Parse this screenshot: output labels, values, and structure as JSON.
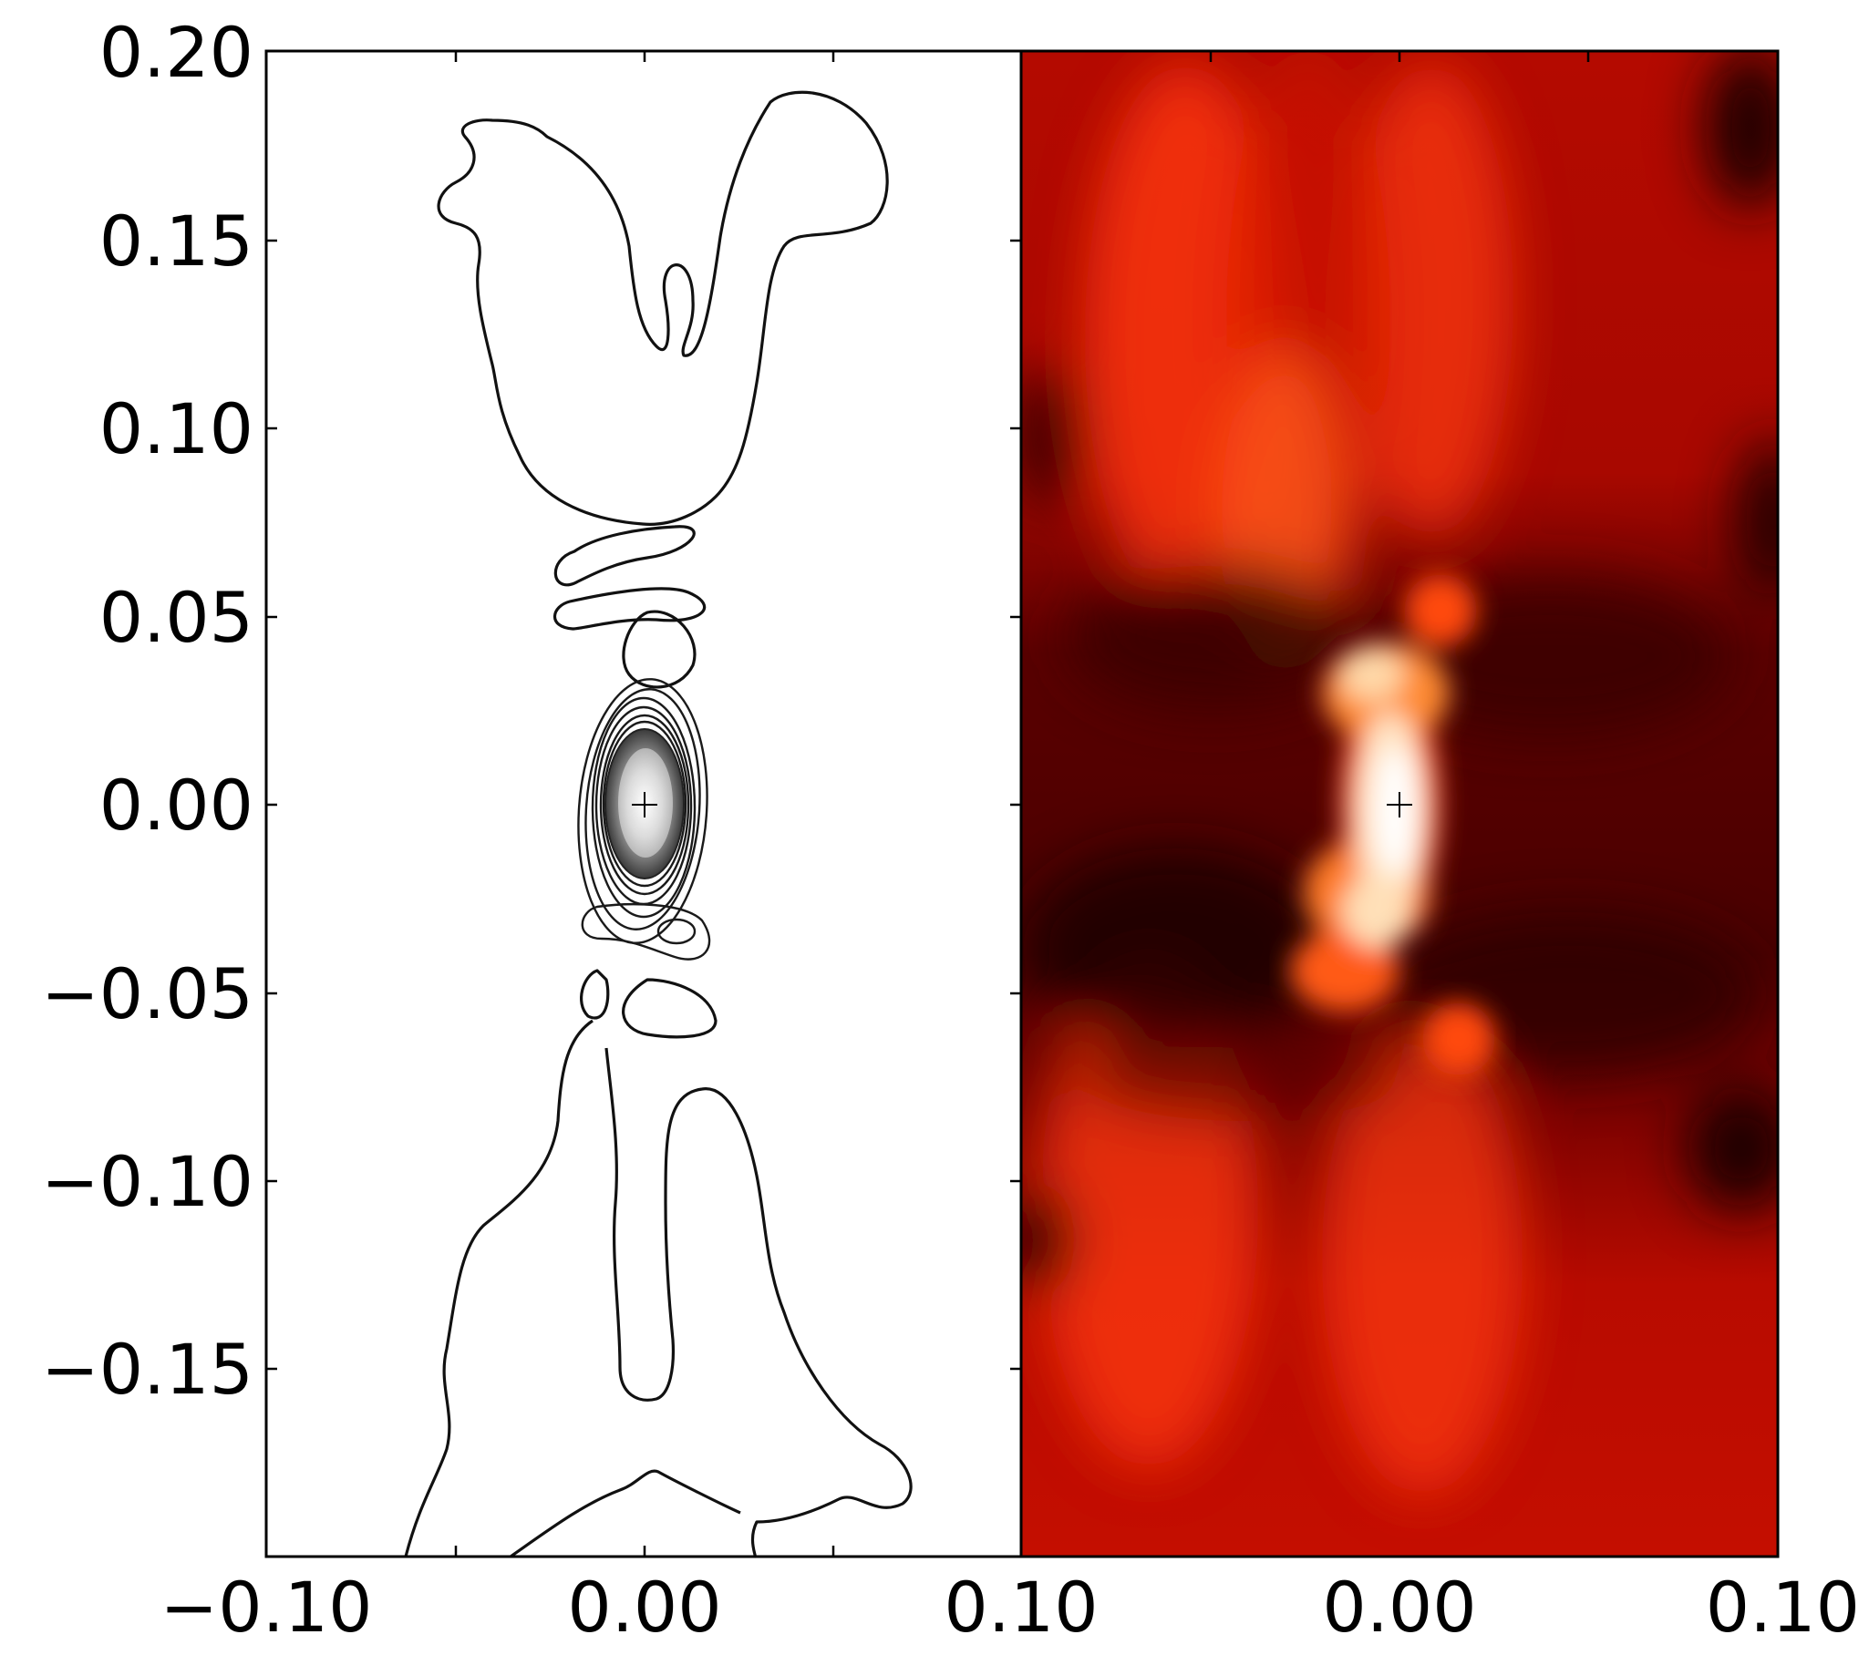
{
  "chart_data": [
    {
      "type": "contour",
      "panel": "left",
      "title": "",
      "xlabel": "",
      "ylabel": "",
      "xlim": [
        -0.1,
        0.1
      ],
      "ylim": [
        -0.2,
        0.2
      ],
      "xticks": [
        "−0.10",
        "0.00",
        "0.10"
      ],
      "yticks": [
        "0.20",
        "0.15",
        "0.10",
        "0.05",
        "0.00",
        "−0.05",
        "−0.10",
        "−0.15"
      ],
      "colormap": "gray",
      "center_marker": {
        "x": 0.0,
        "y": 0.0,
        "symbol": "+"
      }
    },
    {
      "type": "heatmap",
      "panel": "right",
      "title": "",
      "xlabel": "",
      "ylabel": "",
      "xlim": [
        -0.1,
        0.1
      ],
      "ylim": [
        -0.2,
        0.2
      ],
      "xticks": [
        "0.00",
        "0.10"
      ],
      "colormap": "hot",
      "colors": {
        "dark": "#3a0000",
        "mid": "#c80e00",
        "bright": "#ff5a14",
        "peak": "#fff5e6"
      },
      "center_marker": {
        "x": 0.0,
        "y": 0.0,
        "symbol": "+"
      }
    }
  ]
}
